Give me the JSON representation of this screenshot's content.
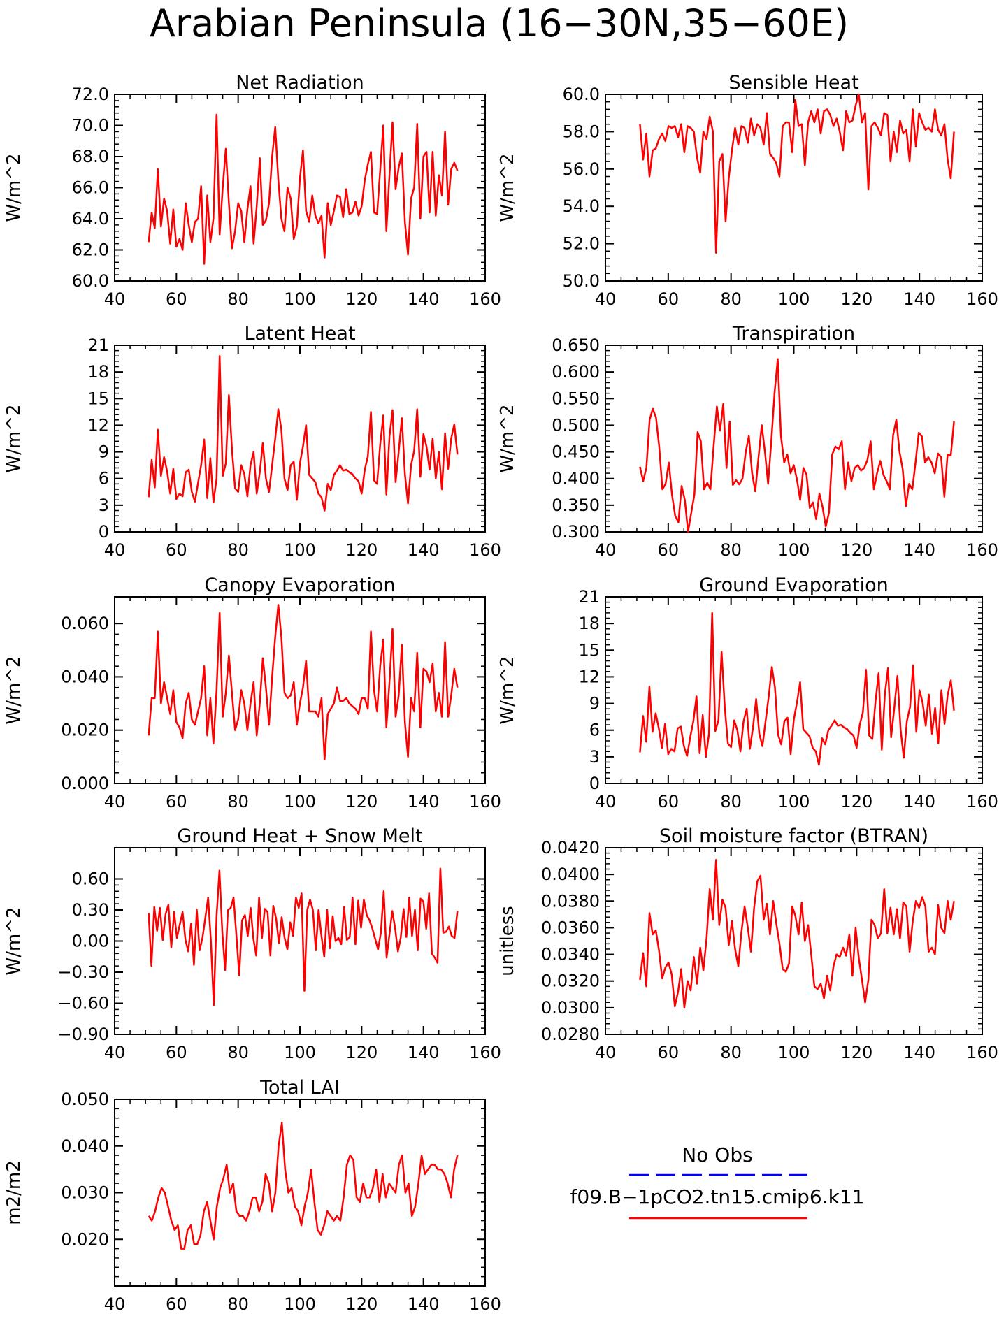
{
  "title": "Arabian Peninsula (16−30N,35−60E)",
  "series_color": "#ff0000",
  "obs_color": "#0000ff",
  "legend": {
    "obs_label": "No Obs",
    "model_label": "f09.B−1pCO2.tn15.cmip6.k11"
  },
  "chart_data": [
    {
      "type": "line",
      "title": "Net Radiation",
      "ylabel": "W/m^2",
      "xlim": [
        40,
        160
      ],
      "ylim": [
        60,
        72
      ],
      "xticks": [
        "40",
        "60",
        "80",
        "100",
        "120",
        "140",
        "160"
      ],
      "yticks": [
        "60.0",
        "62.0",
        "64.0",
        "66.0",
        "68.0",
        "70.0",
        "72.0"
      ],
      "x_start": 51,
      "values": [
        62.5,
        64.4,
        63.4,
        67.2,
        63.5,
        65.3,
        64.5,
        62.4,
        64.6,
        62.2,
        62.7,
        62.0,
        65.0,
        63.6,
        62.5,
        63.8,
        64.0,
        66.1,
        61.1,
        65.5,
        62.5,
        64.0,
        70.7,
        63.0,
        66.0,
        68.5,
        65.0,
        62.1,
        63.2,
        65.0,
        64.5,
        62.5,
        64.6,
        66.1,
        62.4,
        64.8,
        67.9,
        63.6,
        63.9,
        65.0,
        68.0,
        69.9,
        66.5,
        64.0,
        63.2,
        66.0,
        65.3,
        62.7,
        63.5,
        66.6,
        68.4,
        64.5,
        63.8,
        65.5,
        64.2,
        63.7,
        64.2,
        61.5,
        65.0,
        63.6,
        64.5,
        65.5,
        65.4,
        64.1,
        65.9,
        64.3,
        64.4,
        65.1,
        64.2,
        64.8,
        66.5,
        67.5,
        68.3,
        64.4,
        64.3,
        67.1,
        70.0,
        63.2,
        66.8,
        70.2,
        65.9,
        67.3,
        68.2,
        63.8,
        61.7,
        65.3,
        66.0,
        70.1,
        64.0,
        68.0,
        68.3,
        64.4,
        68.3,
        64.2,
        66.8,
        65.5,
        69.6,
        64.9,
        67.2,
        67.6,
        67.1
      ]
    },
    {
      "type": "line",
      "title": "Sensible Heat",
      "ylabel": "W/m^2",
      "xlim": [
        40,
        160
      ],
      "ylim": [
        50,
        60
      ],
      "xticks": [
        "40",
        "60",
        "80",
        "100",
        "120",
        "140",
        "160"
      ],
      "yticks": [
        "50.0",
        "52.0",
        "54.0",
        "56.0",
        "58.0",
        "60.0"
      ],
      "x_start": 51,
      "values": [
        58.4,
        56.5,
        57.9,
        55.6,
        57.0,
        57.1,
        57.6,
        57.9,
        57.5,
        58.3,
        58.2,
        58.3,
        57.7,
        58.4,
        56.9,
        58.3,
        58.2,
        58.0,
        56.6,
        55.8,
        58.0,
        57.6,
        58.8,
        58.0,
        51.5,
        56.4,
        56.8,
        53.2,
        55.5,
        57.0,
        58.2,
        57.3,
        58.3,
        58.2,
        57.4,
        58.7,
        57.8,
        58.4,
        58.2,
        57.3,
        59.0,
        56.8,
        56.6,
        56.3,
        55.6,
        58.3,
        58.5,
        58.5,
        56.9,
        59.7,
        58.3,
        58.4,
        56.2,
        58.5,
        59.1,
        58.5,
        59.2,
        57.9,
        59.1,
        59.2,
        58.9,
        58.3,
        58.7,
        58.0,
        57.0,
        59.1,
        58.5,
        58.6,
        59.4,
        60.0,
        58.5,
        59.0,
        54.9,
        58.3,
        58.5,
        58.2,
        57.8,
        59.0,
        58.9,
        56.4,
        58.0,
        56.9,
        58.6,
        57.9,
        58.1,
        56.4,
        59.2,
        57.2,
        59.0,
        58.5,
        58.1,
        58.2,
        58.0,
        59.2,
        58.1,
        57.8,
        58.4,
        56.5,
        55.5,
        58.0
      ]
    },
    {
      "type": "line",
      "title": "Latent Heat",
      "ylabel": "W/m^2",
      "xlim": [
        40,
        160
      ],
      "ylim": [
        0,
        21
      ],
      "xticks": [
        "40",
        "60",
        "80",
        "100",
        "120",
        "140",
        "160"
      ],
      "yticks": [
        "0",
        "3",
        "6",
        "9",
        "12",
        "15",
        "18",
        "21"
      ],
      "x_start": 51,
      "values": [
        3.9,
        8.1,
        5.0,
        11.5,
        6.3,
        8.4,
        6.8,
        4.3,
        7.1,
        3.7,
        4.3,
        4.0,
        6.7,
        7.0,
        4.5,
        3.4,
        5.5,
        7.5,
        10.4,
        3.8,
        8.3,
        3.3,
        6.0,
        19.8,
        6.3,
        7.7,
        15.4,
        9.3,
        4.9,
        4.5,
        7.5,
        6.5,
        4.0,
        7.5,
        9.0,
        4.3,
        6.7,
        10.0,
        6.0,
        4.5,
        7.5,
        10.5,
        13.8,
        11.5,
        6.0,
        4.7,
        7.5,
        7.9,
        3.6,
        7.7,
        9.6,
        12.0,
        6.4,
        6.0,
        5.6,
        4.3,
        3.9,
        2.4,
        5.4,
        4.7,
        6.4,
        6.9,
        7.5,
        6.9,
        7.0,
        6.7,
        6.5,
        6.0,
        5.7,
        4.3,
        7.0,
        8.5,
        13.5,
        5.8,
        5.4,
        9.8,
        13.1,
        4.2,
        10.7,
        13.7,
        5.6,
        9.0,
        12.8,
        6.5,
        3.2,
        7.5,
        9.1,
        13.8,
        6.2,
        11.0,
        9.6,
        7.0,
        10.5,
        6.0,
        9.0,
        4.8,
        11.1,
        7.1,
        10.5,
        12.1,
        8.7
      ]
    },
    {
      "type": "line",
      "title": "Transpiration",
      "ylabel": "W/m^2",
      "xlim": [
        40,
        160
      ],
      "ylim": [
        0.3,
        0.65
      ],
      "xticks": [
        "40",
        "60",
        "80",
        "100",
        "120",
        "140",
        "160"
      ],
      "yticks": [
        "0.300",
        "0.350",
        "0.400",
        "0.450",
        "0.500",
        "0.550",
        "0.600",
        "0.650"
      ],
      "x_start": 51,
      "values": [
        0.422,
        0.395,
        0.42,
        0.51,
        0.531,
        0.515,
        0.46,
        0.38,
        0.39,
        0.43,
        0.37,
        0.33,
        0.318,
        0.386,
        0.36,
        0.3,
        0.335,
        0.37,
        0.487,
        0.47,
        0.38,
        0.392,
        0.38,
        0.46,
        0.535,
        0.49,
        0.54,
        0.42,
        0.507,
        0.388,
        0.397,
        0.389,
        0.4,
        0.45,
        0.48,
        0.41,
        0.376,
        0.44,
        0.5,
        0.45,
        0.39,
        0.47,
        0.56,
        0.624,
        0.48,
        0.43,
        0.445,
        0.41,
        0.425,
        0.398,
        0.36,
        0.42,
        0.407,
        0.345,
        0.355,
        0.324,
        0.372,
        0.346,
        0.31,
        0.336,
        0.445,
        0.46,
        0.455,
        0.47,
        0.38,
        0.43,
        0.395,
        0.42,
        0.425,
        0.415,
        0.42,
        0.435,
        0.47,
        0.38,
        0.41,
        0.433,
        0.407,
        0.395,
        0.38,
        0.481,
        0.51,
        0.45,
        0.418,
        0.348,
        0.39,
        0.38,
        0.43,
        0.486,
        0.479,
        0.43,
        0.44,
        0.43,
        0.41,
        0.447,
        0.44,
        0.366,
        0.445,
        0.443,
        0.507
      ]
    },
    {
      "type": "line",
      "title": "Canopy Evaporation",
      "ylabel": "W/m^2",
      "xlim": [
        40,
        160
      ],
      "ylim": [
        0,
        0.07
      ],
      "xticks": [
        "40",
        "60",
        "80",
        "100",
        "120",
        "140",
        "160"
      ],
      "yticks": [
        "0.000",
        "0.020",
        "0.040",
        "0.060"
      ],
      "x_start": 51,
      "values": [
        0.018,
        0.032,
        0.032,
        0.057,
        0.03,
        0.038,
        0.032,
        0.026,
        0.035,
        0.023,
        0.021,
        0.017,
        0.03,
        0.034,
        0.024,
        0.022,
        0.027,
        0.032,
        0.044,
        0.018,
        0.032,
        0.015,
        0.035,
        0.064,
        0.025,
        0.034,
        0.048,
        0.034,
        0.02,
        0.024,
        0.035,
        0.03,
        0.02,
        0.03,
        0.038,
        0.018,
        0.03,
        0.047,
        0.036,
        0.022,
        0.04,
        0.055,
        0.067,
        0.055,
        0.034,
        0.032,
        0.033,
        0.038,
        0.022,
        0.03,
        0.036,
        0.046,
        0.027,
        0.027,
        0.027,
        0.025,
        0.032,
        0.009,
        0.026,
        0.028,
        0.03,
        0.036,
        0.031,
        0.031,
        0.032,
        0.03,
        0.029,
        0.028,
        0.026,
        0.032,
        0.032,
        0.028,
        0.057,
        0.035,
        0.027,
        0.044,
        0.054,
        0.021,
        0.038,
        0.058,
        0.025,
        0.033,
        0.052,
        0.023,
        0.01,
        0.032,
        0.027,
        0.049,
        0.021,
        0.043,
        0.042,
        0.038,
        0.045,
        0.027,
        0.034,
        0.025,
        0.053,
        0.025,
        0.033,
        0.043,
        0.036
      ]
    },
    {
      "type": "line",
      "title": "Ground Evaporation",
      "ylabel": "W/m^2",
      "xlim": [
        40,
        160
      ],
      "ylim": [
        0,
        21
      ],
      "xticks": [
        "40",
        "60",
        "80",
        "100",
        "120",
        "140",
        "160"
      ],
      "yticks": [
        "0",
        "3",
        "6",
        "9",
        "12",
        "15",
        "18",
        "21"
      ],
      "x_start": 51,
      "values": [
        3.5,
        7.6,
        4.7,
        10.9,
        5.8,
        7.9,
        6.2,
        4.0,
        6.7,
        3.3,
        3.9,
        3.6,
        6.2,
        6.4,
        4.2,
        3.1,
        5.2,
        7.0,
        9.8,
        3.4,
        7.7,
        3.0,
        5.6,
        19.2,
        5.9,
        7.1,
        14.8,
        8.6,
        4.5,
        4.1,
        7.1,
        6.0,
        3.6,
        7.0,
        8.4,
        3.9,
        6.3,
        9.5,
        5.6,
        4.2,
        7.0,
        9.8,
        13.1,
        10.8,
        5.5,
        4.4,
        7.0,
        7.4,
        3.3,
        7.2,
        9.1,
        11.4,
        6.1,
        5.7,
        5.3,
        4.0,
        3.6,
        2.1,
        5.1,
        4.4,
        6.0,
        6.5,
        7.1,
        6.5,
        6.6,
        6.3,
        6.1,
        5.7,
        5.4,
        4.0,
        6.6,
        8.0,
        12.8,
        5.4,
        5.0,
        9.2,
        12.4,
        3.8,
        10.1,
        13.0,
        5.2,
        8.5,
        12.1,
        6.1,
        2.9,
        7.0,
        8.6,
        13.3,
        5.8,
        10.5,
        9.1,
        6.5,
        10.0,
        5.6,
        8.5,
        4.5,
        10.5,
        6.7,
        10.0,
        11.6,
        8.2
      ]
    },
    {
      "type": "line",
      "title": "Ground Heat + Snow Melt",
      "ylabel": "W/m^2",
      "xlim": [
        40,
        160
      ],
      "ylim": [
        -0.9,
        0.9
      ],
      "xticks": [
        "40",
        "60",
        "80",
        "100",
        "120",
        "140",
        "160"
      ],
      "yticks": [
        "−0.90",
        "−0.60",
        "−0.30",
        "0.00",
        "0.30",
        "0.60"
      ],
      "x_start": 51,
      "values": [
        0.27,
        -0.24,
        0.33,
        0.1,
        0.32,
        0.01,
        0.26,
        0.35,
        -0.06,
        0.28,
        0.03,
        0.16,
        0.28,
        0.01,
        -0.1,
        0.17,
        -0.23,
        0.3,
        -0.09,
        0.03,
        0.22,
        0.42,
        0.0,
        -0.62,
        0.24,
        0.68,
        0.1,
        -0.28,
        0.3,
        0.32,
        0.42,
        0.05,
        -0.33,
        0.2,
        0.25,
        0.05,
        0.32,
        0.02,
        -0.14,
        0.42,
        0.03,
        0.31,
        0.28,
        -0.14,
        0.34,
        0.22,
        -0.02,
        0.23,
        0.03,
        -0.08,
        0.18,
        0.05,
        0.42,
        0.32,
        0.46,
        -0.48,
        0.3,
        0.4,
        0.3,
        -0.09,
        0.3,
        0.05,
        -0.15,
        0.3,
        -0.07,
        0.24,
        0.0,
        0.03,
        -0.03,
        0.33,
        0.01,
        0.04,
        0.42,
        -0.03,
        0.39,
        0.13,
        0.4,
        0.25,
        0.2,
        0.12,
        0.02,
        -0.08,
        0.08,
        0.48,
        -0.16,
        0.06,
        0.29,
        0.13,
        -0.1,
        0.03,
        0.31,
        0.04,
        0.42,
        0.05,
        0.3,
        -0.09,
        0.41,
        0.38,
        0.12,
        0.46,
        -0.12,
        -0.16,
        -0.21,
        0.7,
        0.08,
        0.09,
        0.14,
        0.05,
        0.03,
        0.29
      ]
    },
    {
      "type": "line",
      "title": "Soil moisture factor (BTRAN)",
      "ylabel": "unitless",
      "xlim": [
        40,
        160
      ],
      "ylim": [
        0.028,
        0.042
      ],
      "xticks": [
        "40",
        "60",
        "80",
        "100",
        "120",
        "140",
        "160"
      ],
      "yticks": [
        "0.0280",
        "0.0300",
        "0.0320",
        "0.0340",
        "0.0360",
        "0.0380",
        "0.0400",
        "0.0420"
      ],
      "x_start": 51,
      "values": [
        0.0321,
        0.0341,
        0.0316,
        0.0371,
        0.0355,
        0.0358,
        0.0343,
        0.0322,
        0.033,
        0.0334,
        0.0325,
        0.0301,
        0.0312,
        0.0329,
        0.03,
        0.032,
        0.0313,
        0.0338,
        0.0318,
        0.0345,
        0.0328,
        0.0352,
        0.0389,
        0.0366,
        0.0411,
        0.0362,
        0.0381,
        0.0375,
        0.0347,
        0.0365,
        0.0344,
        0.0331,
        0.0357,
        0.0376,
        0.036,
        0.0342,
        0.0375,
        0.0395,
        0.0399,
        0.0366,
        0.0378,
        0.0355,
        0.038,
        0.0363,
        0.0348,
        0.0329,
        0.0327,
        0.0333,
        0.0376,
        0.0369,
        0.0355,
        0.0379,
        0.035,
        0.0362,
        0.034,
        0.0316,
        0.0314,
        0.0318,
        0.0307,
        0.0324,
        0.0313,
        0.0331,
        0.034,
        0.0338,
        0.0345,
        0.0339,
        0.0355,
        0.0324,
        0.036,
        0.0337,
        0.0321,
        0.0304,
        0.0321,
        0.0366,
        0.0362,
        0.0352,
        0.0356,
        0.0389,
        0.0356,
        0.0375,
        0.0355,
        0.0374,
        0.0352,
        0.0379,
        0.0376,
        0.0342,
        0.0365,
        0.038,
        0.0375,
        0.0383,
        0.0376,
        0.0342,
        0.0345,
        0.034,
        0.0377,
        0.036,
        0.0356,
        0.038,
        0.0366,
        0.038
      ]
    },
    {
      "type": "line",
      "title": "Total LAI",
      "ylabel": "m2/m2",
      "xlim": [
        40,
        160
      ],
      "ylim": [
        0.01,
        0.05
      ],
      "xticks": [
        "40",
        "60",
        "80",
        "100",
        "120",
        "140",
        "160"
      ],
      "yticks": [
        "0.020",
        "0.030",
        "0.040",
        "0.050"
      ],
      "x_start": 51,
      "values": [
        0.025,
        0.024,
        0.026,
        0.029,
        0.031,
        0.03,
        0.027,
        0.024,
        0.022,
        0.023,
        0.018,
        0.018,
        0.022,
        0.023,
        0.019,
        0.019,
        0.021,
        0.026,
        0.028,
        0.024,
        0.02,
        0.027,
        0.031,
        0.033,
        0.036,
        0.03,
        0.032,
        0.026,
        0.025,
        0.025,
        0.024,
        0.026,
        0.029,
        0.029,
        0.026,
        0.028,
        0.034,
        0.032,
        0.026,
        0.03,
        0.04,
        0.045,
        0.035,
        0.03,
        0.031,
        0.027,
        0.026,
        0.023,
        0.027,
        0.03,
        0.035,
        0.028,
        0.022,
        0.021,
        0.023,
        0.026,
        0.025,
        0.024,
        0.025,
        0.024,
        0.029,
        0.036,
        0.038,
        0.037,
        0.029,
        0.028,
        0.032,
        0.029,
        0.029,
        0.031,
        0.035,
        0.028,
        0.034,
        0.029,
        0.032,
        0.031,
        0.03,
        0.036,
        0.038,
        0.03,
        0.032,
        0.025,
        0.027,
        0.032,
        0.038,
        0.034,
        0.035,
        0.036,
        0.036,
        0.035,
        0.035,
        0.034,
        0.032,
        0.029,
        0.035,
        0.038
      ]
    }
  ]
}
